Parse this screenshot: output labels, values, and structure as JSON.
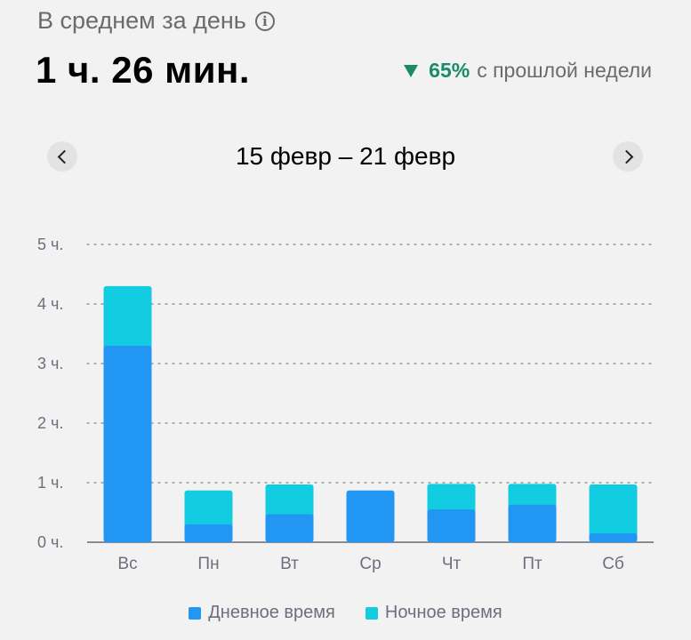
{
  "header": {
    "subtitle": "В среднем за день",
    "info_glyph": "i",
    "average": "1 ч. 26 мин.",
    "delta_pct": "65%",
    "delta_text": "с прошлой недели",
    "delta_color": "#1a8a6a"
  },
  "nav": {
    "range": "15 февр – 21 февр",
    "prev_icon": "chevron-left-icon",
    "next_icon": "chevron-right-icon"
  },
  "colors": {
    "day": "#2196f3",
    "night": "#12cde1",
    "grid": "#9a9aa0",
    "axis": "#8a8a92"
  },
  "chart_data": {
    "type": "bar",
    "stacked": true,
    "categories": [
      "Вс",
      "Пн",
      "Вт",
      "Ср",
      "Чт",
      "Пт",
      "Сб"
    ],
    "series": [
      {
        "name": "Дневное время",
        "values": [
          3.3,
          0.3,
          0.47,
          0.87,
          0.55,
          0.63,
          0.15
        ]
      },
      {
        "name": "Ночное время",
        "values": [
          1.0,
          0.57,
          0.5,
          0.0,
          0.43,
          0.35,
          0.82
        ]
      }
    ],
    "yticks": [
      "0 ч.",
      "1 ч.",
      "2 ч.",
      "3 ч.",
      "4 ч.",
      "5 ч."
    ],
    "ylim": [
      0,
      5
    ],
    "grid": true,
    "legend_position": "bottom"
  }
}
